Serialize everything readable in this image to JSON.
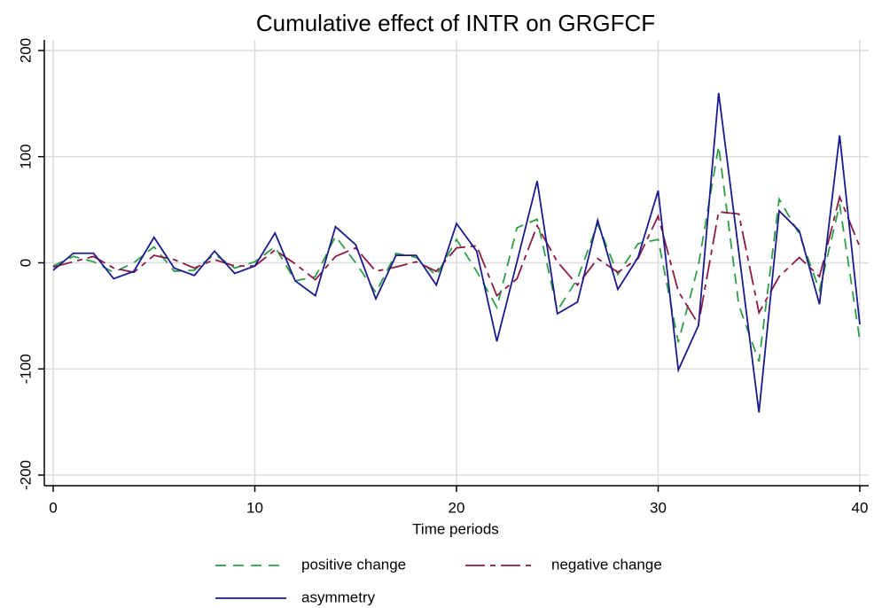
{
  "chart_data": {
    "type": "line",
    "title": "Cumulative effect of INTR on GRGFCF",
    "x_label": "Time periods",
    "x": [
      0,
      1,
      2,
      3,
      4,
      5,
      6,
      7,
      8,
      9,
      10,
      11,
      12,
      13,
      14,
      15,
      16,
      17,
      18,
      19,
      20,
      21,
      22,
      23,
      24,
      25,
      26,
      27,
      28,
      29,
      30,
      31,
      32,
      33,
      34,
      35,
      36,
      37,
      38,
      39,
      40
    ],
    "series": [
      {
        "name": "positive change",
        "color": "#2e9e46",
        "dash": "12,8",
        "values": [
          -3,
          6,
          1,
          -9,
          0,
          15,
          -8,
          -7,
          8,
          -5,
          1,
          15,
          -17,
          -13,
          25,
          0,
          -28,
          9,
          5,
          -12,
          22,
          -8,
          -42,
          33,
          41,
          -45,
          -15,
          37,
          -11,
          18,
          22,
          -75,
          -2,
          110,
          -40,
          -93,
          60,
          27,
          -26,
          55,
          -73
        ]
      },
      {
        "name": "negative change",
        "color": "#8b1a4a",
        "dash": "22,6,6,6",
        "values": [
          -4,
          1,
          6,
          -5,
          -9,
          7,
          3,
          -5,
          3,
          -3,
          -3,
          12,
          -1,
          -16,
          6,
          14,
          -8,
          -4,
          1,
          -8,
          14,
          16,
          -31,
          -15,
          35,
          1,
          -21,
          4,
          -9,
          4,
          44,
          -27,
          -58,
          48,
          46,
          -47,
          -13,
          5,
          -13,
          62,
          15
        ]
      },
      {
        "name": "asymmetry",
        "color": "#1a1a8c",
        "dash": "none",
        "values": [
          -7,
          9,
          9,
          -15,
          -8,
          24,
          -5,
          -12,
          11,
          -10,
          -3,
          28,
          -17,
          -31,
          34,
          17,
          -34,
          7,
          7,
          -21,
          37,
          11,
          -74,
          1,
          77,
          -48,
          -37,
          40,
          -25,
          5,
          68,
          -101,
          -59,
          160,
          10,
          -141,
          49,
          30,
          -39,
          120,
          -58
        ]
      }
    ],
    "xlim": [
      -0.44,
      40.44
    ],
    "xticks": [
      0,
      10,
      20,
      30,
      40
    ],
    "ylim": [
      -210,
      210
    ],
    "yticks": [
      -200,
      -100,
      0,
      100,
      200
    ],
    "grid": true,
    "legend": "bottom"
  }
}
